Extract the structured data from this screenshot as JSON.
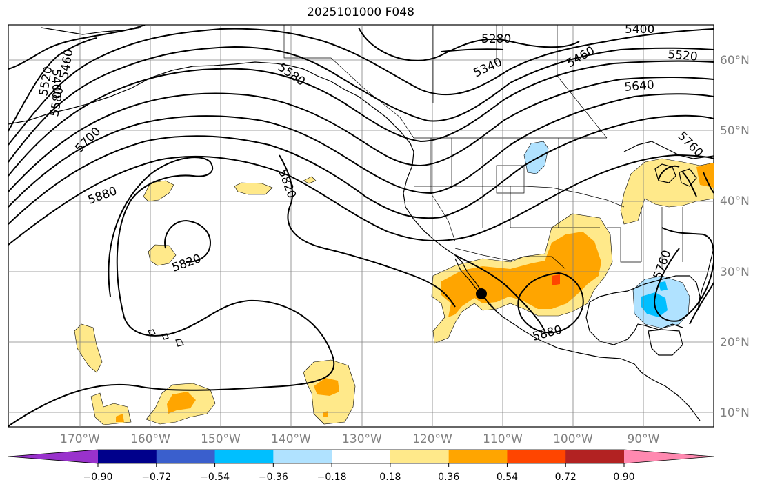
{
  "title": "2025101000 F048",
  "lat_labels": [
    "60°N",
    "50°N",
    "40°N",
    "30°N",
    "20°N",
    "10°N"
  ],
  "lon_labels": [
    "170°W",
    "160°W",
    "150°W",
    "140°W",
    "130°W",
    "120°W",
    "110°W",
    "100°W",
    "90°W"
  ],
  "contour_labels": [
    "5280",
    "5400",
    "5340",
    "5460",
    "5520",
    "5580",
    "5640",
    "5760",
    "5700",
    "5880",
    "5820",
    "5820",
    "5880",
    "5760",
    "5400",
    "5460",
    "5520",
    "5580"
  ],
  "colorbar": {
    "ticks": [
      "−0.90",
      "−0.72",
      "−0.54",
      "−0.36",
      "−0.18",
      "0.18",
      "0.36",
      "0.54",
      "0.72",
      "0.90"
    ],
    "colors": [
      "#9932cc",
      "#00008b",
      "#3a5fcd",
      "#00bfff",
      "#b0e2ff",
      "#ffffff",
      "#ffe98a",
      "#ffa500",
      "#ff4500",
      "#b22222",
      "#ff89b0"
    ]
  },
  "marker": {
    "label": "point-marker",
    "color": "#000000"
  }
}
